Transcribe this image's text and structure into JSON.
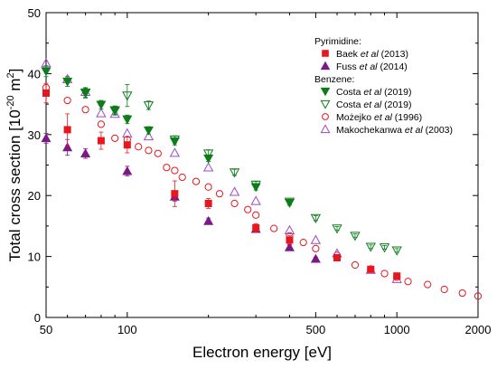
{
  "chart_data": {
    "type": "scatter",
    "xlabel": "Electron energy [eV]",
    "ylabel_main": "Total cross section [10",
    "ylabel_exp": "-20",
    "ylabel_unit": " m",
    "ylabel_unit_exp": "2",
    "ylabel_close": "]",
    "x_scale": "log",
    "xlim": [
      50,
      2000
    ],
    "ylim": [
      0,
      50
    ],
    "x_ticks": [
      50,
      100,
      500,
      1000,
      2000
    ],
    "x_tick_labels": [
      "50",
      "100",
      "500",
      "1000",
      "2000"
    ],
    "y_ticks": [
      0,
      10,
      20,
      30,
      40,
      50
    ],
    "y_tick_labels": [
      "0",
      "10",
      "20",
      "30",
      "40",
      "50"
    ],
    "legend_position": "top-right",
    "groups": [
      {
        "heading": "Pyrimidine:",
        "series": [
          {
            "name_pre": "Baek ",
            "name_it": "et al",
            "name_post": " (2013)",
            "marker": "square",
            "filled": true,
            "color": "#e8171d",
            "points": [
              [
                50,
                36.8
              ],
              [
                60,
                30.8
              ],
              [
                80,
                29.0
              ],
              [
                100,
                28.3
              ],
              [
                150,
                20.3
              ],
              [
                200,
                18.7
              ],
              [
                300,
                14.7
              ],
              [
                400,
                12.7
              ],
              [
                600,
                9.8
              ],
              [
                800,
                7.9
              ],
              [
                1000,
                6.8
              ]
            ],
            "errors": [
              1.6,
              2.6,
              1.4,
              1.3,
              2.1,
              0.8,
              0.7,
              0.7,
              0.5,
              0.5,
              0.4
            ]
          },
          {
            "name_pre": "Fuss ",
            "name_it": "et al",
            "name_post": " (2014)",
            "marker": "triangle-up",
            "filled": true,
            "color": "#7b1a86",
            "points": [
              [
                50,
                29.4
              ],
              [
                60,
                27.9
              ],
              [
                70,
                26.9
              ],
              [
                100,
                24.0
              ],
              [
                150,
                19.8
              ],
              [
                200,
                15.8
              ],
              [
                300,
                14.5
              ],
              [
                400,
                11.5
              ],
              [
                500,
                9.6
              ]
            ],
            "errors": [
              0.8,
              1.3,
              0.8,
              0.8,
              0.7,
              0.5,
              0.5,
              0.4,
              0.3
            ]
          }
        ]
      },
      {
        "heading": "Benzene:",
        "series": [
          {
            "name_pre": "Costa ",
            "name_it": "et al",
            "name_post": " (2019)",
            "marker": "triangle-down",
            "filled": true,
            "color": "#0c7d1a",
            "points": [
              [
                50,
                40.4
              ],
              [
                60,
                38.7
              ],
              [
                70,
                36.8
              ],
              [
                80,
                34.9
              ],
              [
                90,
                33.9
              ],
              [
                100,
                32.5
              ],
              [
                120,
                30.7
              ],
              [
                150,
                28.9
              ],
              [
                200,
                26.1
              ],
              [
                300,
                21.4
              ],
              [
                400,
                18.8
              ]
            ],
            "errors": [
              0.9,
              0.8,
              0.8,
              0.7,
              0.7,
              0.7,
              0.6,
              0.6,
              0.5,
              0.5,
              0.4
            ]
          },
          {
            "name_pre": "Costa ",
            "name_it": "et al",
            "name_post": " (2019)",
            "marker": "triangle-down",
            "filled": false,
            "color": "#0c7d1a",
            "points": [
              [
                70,
                36.9
              ],
              [
                90,
                34.0
              ],
              [
                100,
                36.4
              ],
              [
                120,
                34.8
              ],
              [
                150,
                29.2
              ],
              [
                200,
                26.9
              ],
              [
                250,
                23.8
              ],
              [
                300,
                21.8
              ],
              [
                400,
                19.0
              ],
              [
                500,
                16.3
              ],
              [
                600,
                14.6
              ],
              [
                700,
                13.4
              ],
              [
                800,
                11.6
              ],
              [
                900,
                11.5
              ],
              [
                1000,
                11.0
              ]
            ],
            "errors": [
              0.8,
              0.7,
              1.8,
              0.7,
              0.6,
              0.6,
              0.5,
              0.5,
              0.4,
              0.4,
              0.3,
              0.3,
              0.3,
              0.3,
              0.3
            ]
          },
          {
            "name_pre": "Możejko ",
            "name_it": "et al",
            "name_post": " (1996)",
            "marker": "circle",
            "filled": false,
            "color": "#e8171d",
            "points": [
              [
                50,
                37.7
              ],
              [
                60,
                35.6
              ],
              [
                70,
                34.1
              ],
              [
                80,
                31.7
              ],
              [
                90,
                29.4
              ],
              [
                100,
                29.2
              ],
              [
                110,
                28.0
              ],
              [
                120,
                27.4
              ],
              [
                130,
                26.9
              ],
              [
                140,
                24.6
              ],
              [
                150,
                24.1
              ],
              [
                160,
                23.0
              ],
              [
                180,
                22.3
              ],
              [
                200,
                21.4
              ],
              [
                220,
                20.3
              ],
              [
                250,
                18.7
              ],
              [
                280,
                17.7
              ],
              [
                300,
                16.8
              ],
              [
                350,
                14.6
              ],
              [
                400,
                13.4
              ],
              [
                450,
                12.3
              ],
              [
                500,
                11.3
              ],
              [
                600,
                10.2
              ],
              [
                700,
                8.6
              ],
              [
                800,
                7.9
              ],
              [
                900,
                7.2
              ],
              [
                1000,
                6.6
              ],
              [
                1100,
                5.9
              ],
              [
                1300,
                5.4
              ],
              [
                1500,
                4.6
              ],
              [
                1750,
                4.0
              ],
              [
                2000,
                3.5
              ]
            ],
            "errors": []
          },
          {
            "name_pre": "Makochekanwa ",
            "name_it": "et al",
            "name_post": " (2003)",
            "marker": "triangle-up",
            "filled": false,
            "color": "#9a4bc8",
            "points": [
              [
                50,
                41.7
              ],
              [
                60,
                39.1
              ],
              [
                70,
                37.0
              ],
              [
                80,
                33.5
              ],
              [
                90,
                33.4
              ],
              [
                100,
                30.2
              ],
              [
                120,
                29.7
              ],
              [
                150,
                27.0
              ],
              [
                200,
                24.6
              ],
              [
                250,
                20.6
              ],
              [
                300,
                19.1
              ],
              [
                400,
                14.3
              ],
              [
                500,
                12.7
              ],
              [
                600,
                10.5
              ],
              [
                800,
                7.8
              ],
              [
                1000,
                6.3
              ]
            ],
            "errors": []
          }
        ]
      }
    ]
  }
}
